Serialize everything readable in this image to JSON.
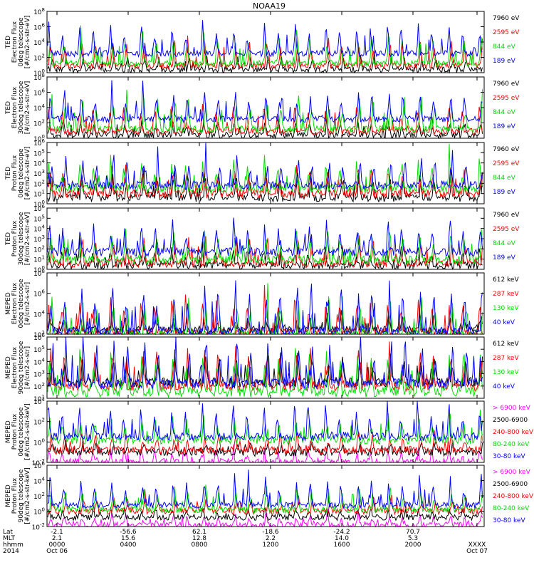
{
  "title": "NOAA19",
  "colors": {
    "blue": "#0000ff",
    "red": "#ff0000",
    "green": "#00e000",
    "black": "#000000",
    "magenta": "#ff00ff"
  },
  "chart_data": [
    {
      "type": "line",
      "instrument": "TED",
      "ylabel_lines": [
        "TED",
        "Electron Flux",
        "0deg telescope",
        "[#/cm2-s-str-eV]"
      ],
      "yticks": [
        [
          "10",
          "0"
        ],
        [
          "10",
          "2"
        ],
        [
          "10",
          "4"
        ],
        [
          "10",
          "6"
        ],
        [
          "10",
          "8"
        ]
      ],
      "legend": [
        {
          "label": "7960 eV",
          "color": "black"
        },
        {
          "label": "2595 eV",
          "color": "red"
        },
        {
          "label": "844 eV",
          "color": "green"
        },
        {
          "label": "189 eV",
          "color": "blue"
        }
      ],
      "series": [
        {
          "color": "blue",
          "base": 2.5,
          "spike": 6.5
        },
        {
          "color": "green",
          "base": 1.2,
          "spike": 5.5
        },
        {
          "color": "red",
          "base": 0.9,
          "spike": 4.5
        },
        {
          "color": "black",
          "base": 0.4,
          "spike": 2.5
        }
      ]
    },
    {
      "type": "line",
      "instrument": "TED",
      "ylabel_lines": [
        "TED",
        "Electron Flux",
        "30deg telescope",
        "[#/cm2-s-str-eV]"
      ],
      "yticks": [
        [
          "10",
          "0"
        ],
        [
          "10",
          "2"
        ],
        [
          "10",
          "4"
        ],
        [
          "10",
          "6"
        ],
        [
          "10",
          "8"
        ]
      ],
      "legend": [
        {
          "label": "7960 eV",
          "color": "black"
        },
        {
          "label": "2595 eV",
          "color": "red"
        },
        {
          "label": "844 eV",
          "color": "green"
        },
        {
          "label": "189 eV",
          "color": "blue"
        }
      ],
      "series": [
        {
          "color": "blue",
          "base": 2.5,
          "spike": 6.5
        },
        {
          "color": "green",
          "base": 1.2,
          "spike": 5.5
        },
        {
          "color": "red",
          "base": 0.9,
          "spike": 4.5
        },
        {
          "color": "black",
          "base": 0.4,
          "spike": 2.5
        }
      ]
    },
    {
      "type": "line",
      "instrument": "TED",
      "ylabel_lines": [
        "TED",
        "Proton Flux",
        "0deg telescope",
        "[#/cm2-s-str-eV]"
      ],
      "yticks": [
        [
          "10",
          "0"
        ],
        [
          "10",
          "1"
        ],
        [
          "10",
          "2"
        ],
        [
          "10",
          "3"
        ],
        [
          "10",
          "4"
        ],
        [
          "10",
          "5"
        ],
        [
          "10",
          "6"
        ]
      ],
      "legend": [
        {
          "label": "7960 eV",
          "color": "black"
        },
        {
          "label": "2595 eV",
          "color": "red"
        },
        {
          "label": "844 eV",
          "color": "green"
        },
        {
          "label": "189 eV",
          "color": "blue"
        }
      ],
      "series": [
        {
          "color": "blue",
          "base": 1.8,
          "spike": 4.8
        },
        {
          "color": "green",
          "base": 1.5,
          "spike": 4.2
        },
        {
          "color": "red",
          "base": 1.0,
          "spike": 3.8
        },
        {
          "color": "black",
          "base": 0.6,
          "spike": 3.2
        }
      ]
    },
    {
      "type": "line",
      "instrument": "TED",
      "ylabel_lines": [
        "TED",
        "Proton Flux",
        "30deg telescope",
        "[#/cm2-s-str-eV]"
      ],
      "yticks": [
        [
          "10",
          "0"
        ],
        [
          "10",
          "1"
        ],
        [
          "10",
          "2"
        ],
        [
          "10",
          "3"
        ],
        [
          "10",
          "4"
        ],
        [
          "10",
          "5"
        ],
        [
          "10",
          "6"
        ]
      ],
      "legend": [
        {
          "label": "7960 eV",
          "color": "black"
        },
        {
          "label": "2595 eV",
          "color": "red"
        },
        {
          "label": "844 eV",
          "color": "green"
        },
        {
          "label": "189 eV",
          "color": "blue"
        }
      ],
      "series": [
        {
          "color": "blue",
          "base": 1.7,
          "spike": 4.6
        },
        {
          "color": "green",
          "base": 0.9,
          "spike": 3.8
        },
        {
          "color": "red",
          "base": 0.6,
          "spike": 3.3
        },
        {
          "color": "black",
          "base": 0.4,
          "spike": 2.2
        }
      ]
    },
    {
      "type": "line",
      "instrument": "MEPED",
      "ylabel_lines": [
        "MEPED",
        "Electron Flux",
        "0deg telescope",
        "[#/cm2-s-str]"
      ],
      "yticks": [
        [
          "10",
          "2"
        ],
        [
          "10",
          "4"
        ],
        [
          "10",
          "6"
        ],
        [
          "10",
          "8"
        ]
      ],
      "legend": [
        {
          "label": "612 keV",
          "color": "black"
        },
        {
          "label": "287 keV",
          "color": "red"
        },
        {
          "label": "130 keV",
          "color": "green"
        },
        {
          "label": "40 keV",
          "color": "blue"
        }
      ],
      "series": [
        {
          "color": "blue",
          "base": 2.3,
          "spike": 7.0
        },
        {
          "color": "green",
          "base": 2.0,
          "spike": 5.5
        },
        {
          "color": "red",
          "base": 2.2,
          "spike": 5.8
        },
        {
          "color": "black",
          "base": 2.4,
          "spike": 4.0
        }
      ]
    },
    {
      "type": "line",
      "instrument": "MEPED",
      "ylabel_lines": [
        "MEPED",
        "Electron Flux",
        "90deg telescope",
        "[#/cm2-s-str]"
      ],
      "yticks": [
        [
          "10",
          "1"
        ],
        [
          "10",
          "2"
        ],
        [
          "10",
          "3"
        ],
        [
          "10",
          "4"
        ],
        [
          "10",
          "5"
        ],
        [
          "10",
          "6"
        ]
      ],
      "legend": [
        {
          "label": "612 keV",
          "color": "black"
        },
        {
          "label": "287 keV",
          "color": "red"
        },
        {
          "label": "130 keV",
          "color": "green"
        },
        {
          "label": "40 keV",
          "color": "blue"
        }
      ],
      "series": [
        {
          "color": "blue",
          "base": 2.2,
          "spike": 6.0
        },
        {
          "color": "green",
          "base": 1.5,
          "spike": 5.0
        },
        {
          "color": "red",
          "base": 2.0,
          "spike": 5.2
        },
        {
          "color": "black",
          "base": 2.3,
          "spike": 4.8
        }
      ]
    },
    {
      "type": "line",
      "instrument": "MEPED",
      "ylabel_lines": [
        "MEPED",
        "Proton Flux",
        "0deg telescope",
        "[#/cm2-s-str-keV]"
      ],
      "yticks": [
        [
          "10",
          "-2"
        ],
        [
          "10",
          "0"
        ],
        [
          "10",
          "2"
        ],
        [
          "10",
          "4"
        ]
      ],
      "legend": [
        {
          "label": "> 6900 keV",
          "color": "magenta"
        },
        {
          "label": "2500-6900",
          "color": "black"
        },
        {
          "label": "240-800 keV",
          "color": "red"
        },
        {
          "label": "80-240 keV",
          "color": "green"
        },
        {
          "label": "30-80 keV",
          "color": "blue"
        }
      ],
      "series": [
        {
          "color": "blue",
          "base": 0.5,
          "spike": 3.8
        },
        {
          "color": "green",
          "base": 0.2,
          "spike": 2.5
        },
        {
          "color": "red",
          "base": -0.8,
          "spike": 1.0
        },
        {
          "color": "black",
          "base": -1.0,
          "spike": 0.0
        },
        {
          "color": "magenta",
          "base": -2.0,
          "spike": -0.5
        }
      ]
    },
    {
      "type": "line",
      "instrument": "MEPED",
      "ylabel_lines": [
        "MEPED",
        "Proton Flux",
        "90deg telescope",
        "[#/cm2-s-str-keV]"
      ],
      "yticks": [
        [
          "10",
          "-2"
        ],
        [
          "10",
          "0"
        ],
        [
          "10",
          "2"
        ],
        [
          "10",
          "4"
        ],
        [
          "10",
          "6"
        ]
      ],
      "legend": [
        {
          "label": "> 6900 keV",
          "color": "magenta"
        },
        {
          "label": "2500-6900",
          "color": "black"
        },
        {
          "label": "240-800 keV",
          "color": "red"
        },
        {
          "label": "80-240 keV",
          "color": "green"
        },
        {
          "label": "30-80 keV",
          "color": "blue"
        }
      ],
      "series": [
        {
          "color": "blue",
          "base": 0.8,
          "spike": 4.5
        },
        {
          "color": "green",
          "base": 0.2,
          "spike": 3.2
        },
        {
          "color": "red",
          "base": 0.0,
          "spike": 1.8
        },
        {
          "color": "black",
          "base": -0.8,
          "spike": 0.5
        },
        {
          "color": "magenta",
          "base": -1.8,
          "spike": -0.3
        }
      ]
    }
  ],
  "xaxis": {
    "row_labels": [
      "Lat",
      "MLT",
      "hhmm",
      "2014"
    ],
    "ticks": [
      {
        "lat": "-2.1",
        "mlt": "2.1",
        "hhmm": "0000",
        "date": "Oct 06"
      },
      {
        "lat": "-56.6",
        "mlt": "15.6",
        "hhmm": "0400",
        "date": ""
      },
      {
        "lat": "62.1",
        "mlt": "12.8",
        "hhmm": "0800",
        "date": ""
      },
      {
        "lat": "-18.6",
        "mlt": "2.2",
        "hhmm": "1200",
        "date": ""
      },
      {
        "lat": "-24.2",
        "mlt": "14.0",
        "hhmm": "1600",
        "date": ""
      },
      {
        "lat": "70.7",
        "mlt": "5.3",
        "hhmm": "2000",
        "date": ""
      },
      {
        "lat": "",
        "mlt": "",
        "hhmm": "XXXX",
        "date": "Oct 07"
      }
    ]
  }
}
